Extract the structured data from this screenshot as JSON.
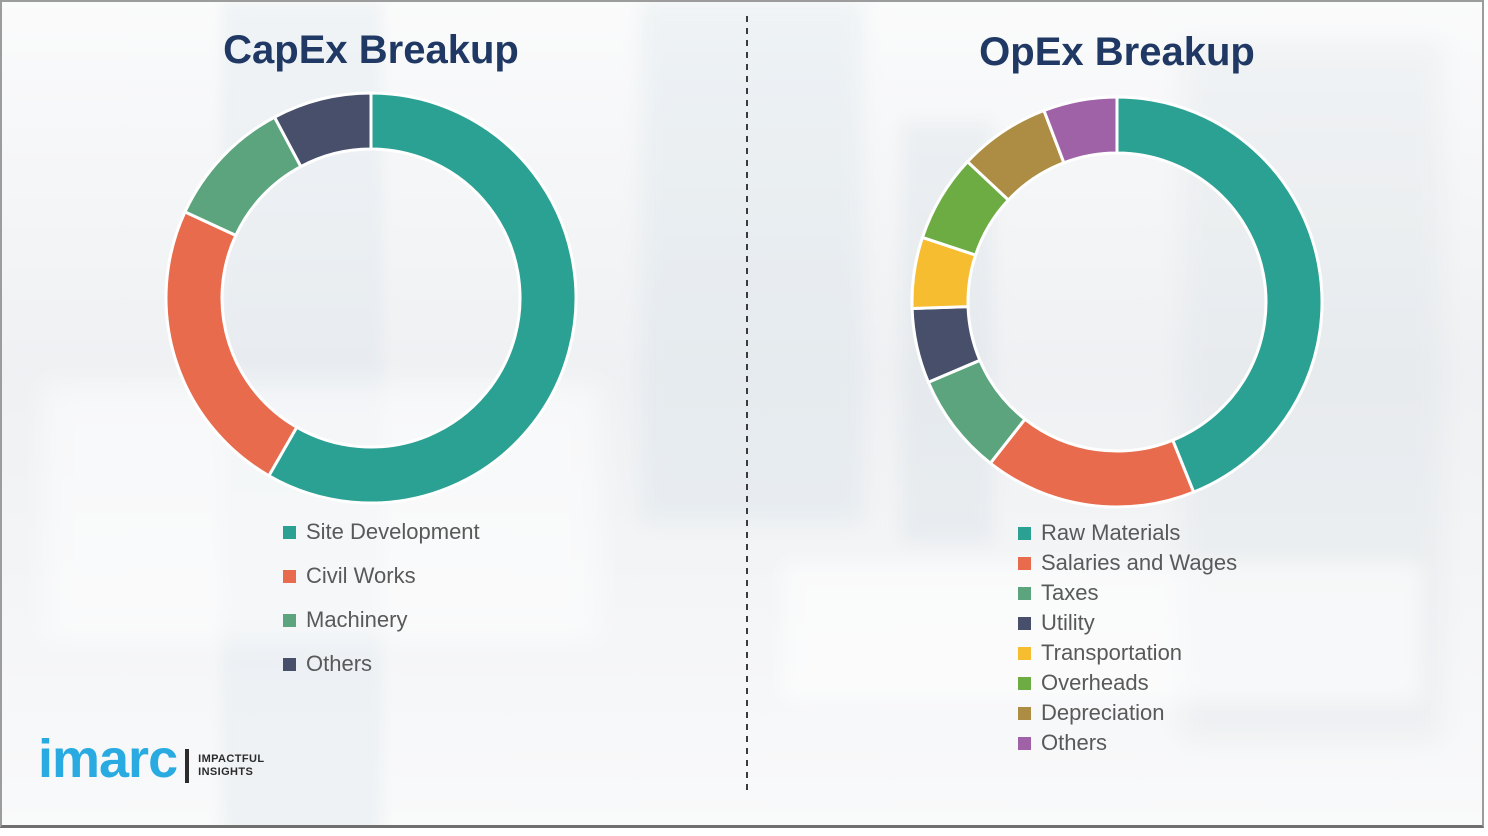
{
  "page": {
    "background_color": "#f2f3f5",
    "border_color": "#9c9c9c",
    "divider_color": "#3c3c3c",
    "title_color": "#1f3864",
    "legend_text_color": "#595959"
  },
  "logo": {
    "brand": "imarc",
    "tagline_line1": "IMPACTFUL",
    "tagline_line2": "INSIGHTS",
    "brand_color": "#29abe2",
    "tagline_color": "#2b2b2b",
    "bar_color": "#2b2b2b"
  },
  "chart_data": [
    {
      "type": "pie",
      "variant": "donut",
      "title": "CapEx Breakup",
      "categories": [
        "Site Development",
        "Civil Works",
        "Machinery",
        "Others"
      ],
      "values": [
        58.3,
        23.6,
        10.3,
        7.8
      ],
      "unit": "percent_of_total",
      "colors": [
        "#2ba193",
        "#e76b4c",
        "#5ba47d",
        "#474f6b"
      ],
      "start_angle_deg": 0,
      "direction": "clockwise",
      "legend_position": "below-left",
      "data_labels": false
    },
    {
      "type": "pie",
      "variant": "donut",
      "title": "OpEx Breakup",
      "categories": [
        "Raw Materials",
        "Salaries and Wages",
        "Taxes",
        "Utility",
        "Transportation",
        "Overheads",
        "Depreciation",
        "Others"
      ],
      "values": [
        43.9,
        16.7,
        8.0,
        5.9,
        5.6,
        6.9,
        7.2,
        5.8
      ],
      "unit": "percent_of_total",
      "colors": [
        "#2ba193",
        "#e76b4c",
        "#5ba47d",
        "#474f6b",
        "#f5bd2f",
        "#6cac42",
        "#ad8c43",
        "#9f62a7"
      ],
      "start_angle_deg": 0,
      "direction": "clockwise",
      "legend_position": "below-left",
      "data_labels": false
    }
  ]
}
